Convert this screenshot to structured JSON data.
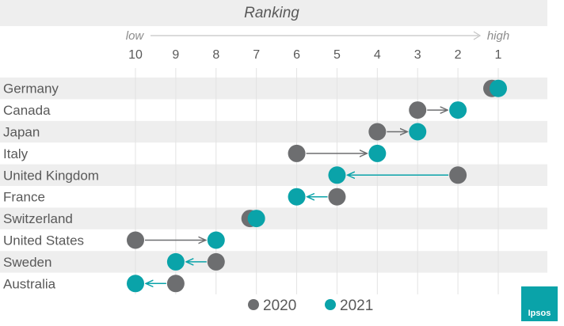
{
  "chart_data": {
    "type": "dot-arrow",
    "title": "Ranking",
    "axis": {
      "low_label": "low",
      "high_label": "high",
      "ticks": [
        10,
        9,
        8,
        7,
        6,
        5,
        4,
        3,
        2,
        1
      ],
      "range": [
        10,
        1
      ]
    },
    "categories": [
      "Germany",
      "Canada",
      "Japan",
      "Italy",
      "United Kingdom",
      "France",
      "Switzerland",
      "United States",
      "Sweden",
      "Australia"
    ],
    "series": [
      {
        "name": "2020",
        "values": [
          1,
          3,
          4,
          6,
          2,
          5,
          7,
          10,
          8,
          9
        ]
      },
      {
        "name": "2021",
        "values": [
          1,
          2,
          3,
          4,
          5,
          6,
          7,
          8,
          9,
          10
        ]
      }
    ],
    "legend_position": "bottom"
  },
  "colors": {
    "color_2020": "#6d6e70",
    "color_2021": "#0aa3a9",
    "band": "#eeeeee",
    "text": "#595959"
  },
  "logo": {
    "text": "Ipsos"
  }
}
